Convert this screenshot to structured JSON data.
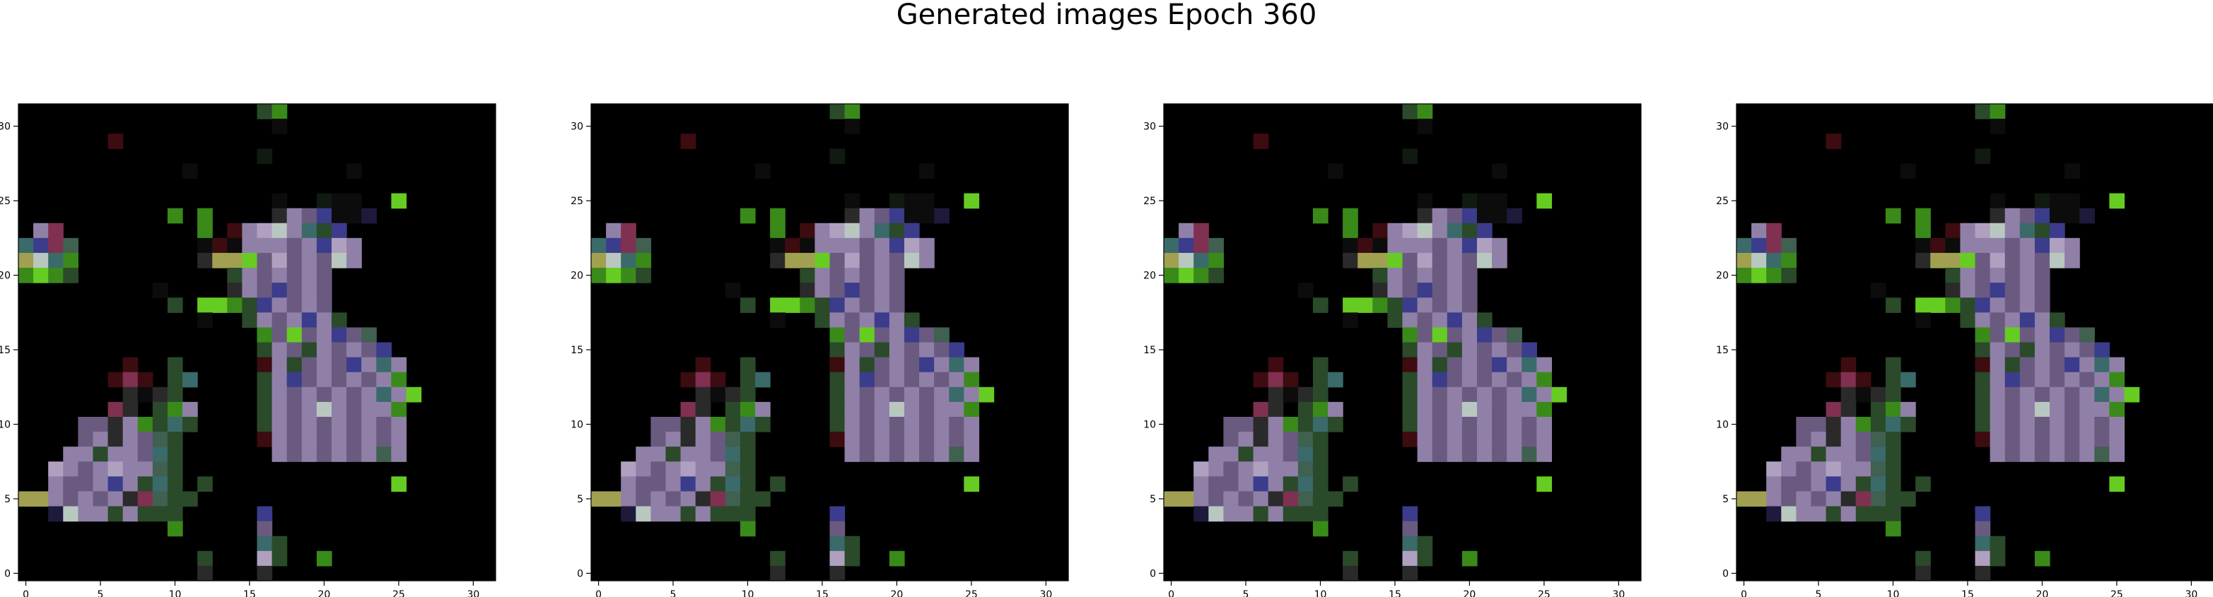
{
  "figure": {
    "title": "Generated images Epoch 360"
  },
  "chart_data": {
    "type": "heatmap",
    "title": "Generated images Epoch 360",
    "panels": 4,
    "grid_size": [
      32,
      32
    ],
    "xlim": [
      -0.5,
      31.5
    ],
    "ylim": [
      31.5,
      -0.5
    ],
    "xticks": [
      0,
      5,
      10,
      15,
      20,
      25,
      30
    ],
    "yticks": [
      0,
      5,
      10,
      15,
      20,
      25,
      30
    ],
    "xtick_labels": [
      "0",
      "5",
      "10",
      "15",
      "20",
      "25",
      "30"
    ],
    "ytick_labels": [
      "0",
      "5",
      "10",
      "15",
      "20",
      "25",
      "30"
    ],
    "palette": {
      "k": "#000000",
      "d": "#0c0c0c",
      "e": "#101a10",
      "m": "#2a2a2a",
      "b": "#1e1a3c",
      "n": "#3c3c8c",
      "r": "#3c0c10",
      "g": "#2a4a2a",
      "G": "#3a8a1a",
      "L": "#66cc22",
      "Y": "#a0a050",
      "T": "#3a6a6a",
      "u": "#6a5a80",
      "P": "#9080a8",
      "p": "#b0a0c0",
      "w": "#b8c8c0",
      "M": "#803050",
      "c": "#406050"
    },
    "pixels": [
      "kkkkkkkkkkkkkkkkgGkkkkkkkkkkkkkk",
      "kkkkkkkkkkkkkkkkkdkkkkkkkkkkkkkk",
      "kkkkkkrkkkkkkkkkkkkkkkkkkkkkkkkk",
      "kkkkkkkkkkkkkkkkekkkkkkkkkkkkkkk",
      "kkkkkkkkkkkdkkkkkkkkkkdkkkkkkkkk",
      "kkkkkkkkkkkkkkkkkkkkkkkkkkkkkkkk",
      "kkkkkkkkkkkkkkkkkdkkeddkkLkkkkkk",
      "kkkkkkkkkkGkGkkkkmPunddbkkkkkkkk",
      "kPMkkkkkkkkkGkrPpwPTgnkkkkkkkkkk",
      "TnMckkkkkkkkdrdPPPuPnpPkkkkkkkkk",
      "YwTGkkkkkkkkmYYLupuPuwPkkkkkkkkk",
      "GLGgkkkkkkkkkkgPuPuPukkkkkkkkkkk",
      "kkkkkkkkkdkkkkmPunuPukkkkkkkkkkk",
      "kkkkkkkkkkgkLLGgnPuPukkkkkkkkkkk",
      "kkkkkkkkkkkkdkkgPuPnPgkkkkkkkkkk",
      "kkkkkkkkkkkkkkkkGuLuPnuckkkkkkkk",
      "kkkkkkkkkkkkkkkkgPugPuPunkkkkkkk",
      "kkkkkkkrkkgkkkkkrPguPunPTPkkkkkk",
      "kkkkkkrMrkgTkkkkgPnuPuPuPGkkkkkk",
      "kkkkkkkmdmgkkkkkgPuPuPuPTPLkkkkk",
      "kkkkkkMmkgGPkkkkgPuPwPuPPGkkkkkk",
      "kkkkuumPGgTgkkkkgPuPuPuPuPkkkkkk",
      "kkkkuPmPucgkkkkkrPuPuPuPuPkkkkkk",
      "kkkPPgPPuTgkkkkkkPuPuPuPcPkkkkkk",
      "kkpPuPpPPcgkkkkkkkkkkkkkkkkkkkkk",
      "kkPuuPnPgTgkgkkkkkkkkkkkkLkkkkkk",
      "YYPuPuPmMcggkkkkkkkkkkkkkkkkkkkk",
      "kkbwPPgPgggkkkkknkkkkkkkkkkkkkkk",
      "kkkkkkkkkkGkkkkkukkkkkkkkkkkkkkk",
      "kkkkkkkkkkkkkkkkTgkkkkkkkkkkkkkk",
      "kkkkkkkkkkkkgkkkpgkkGkkkkkkkkkkk",
      "kkkkkkkkkkkkmkkkmkkkkkkkkkkkkkkk"
    ]
  }
}
